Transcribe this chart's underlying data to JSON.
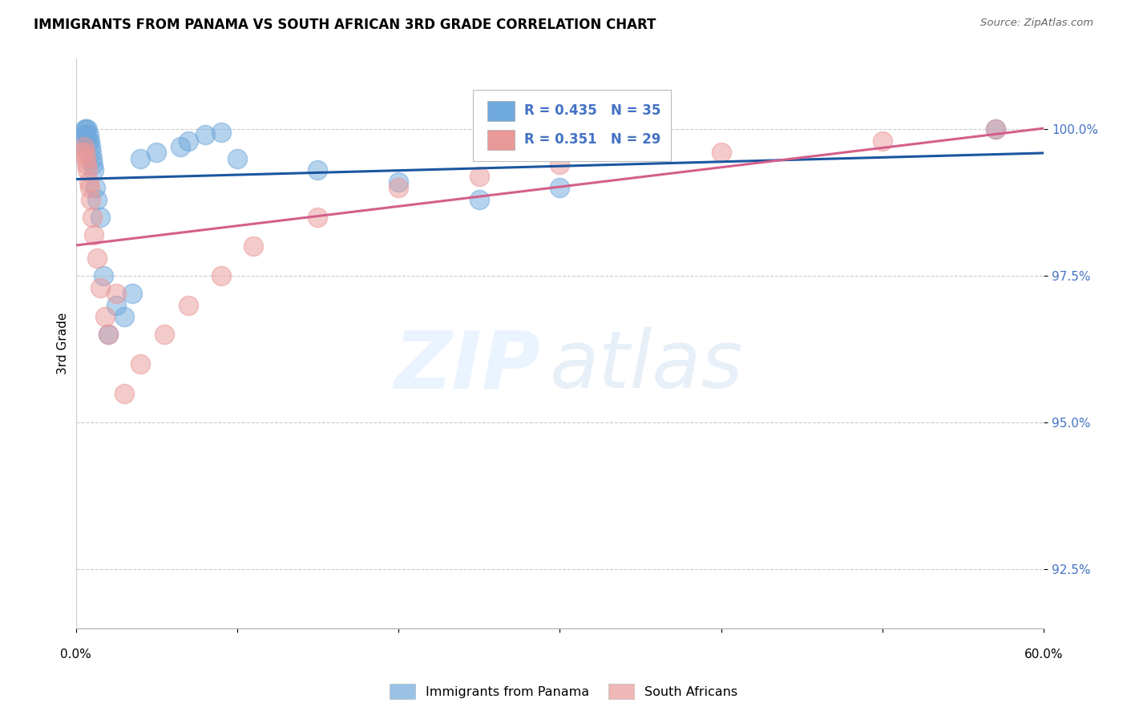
{
  "title": "IMMIGRANTS FROM PANAMA VS SOUTH AFRICAN 3RD GRADE CORRELATION CHART",
  "source": "Source: ZipAtlas.com",
  "ylabel": "3rd Grade",
  "yticks": [
    92.5,
    95.0,
    97.5,
    100.0
  ],
  "xlim": [
    0.0,
    60.0
  ],
  "ylim": [
    91.5,
    101.2
  ],
  "legend_label1": "Immigrants from Panama",
  "legend_label2": "South Africans",
  "blue_color": "#6fa8dc",
  "pink_color": "#ea9999",
  "blue_line_color": "#1a56a0",
  "pink_line_color": "#d45f8a",
  "panama_x": [
    0.3,
    0.4,
    0.5,
    0.55,
    0.6,
    0.65,
    0.7,
    0.75,
    0.8,
    0.85,
    0.9,
    0.95,
    1.0,
    1.05,
    1.1,
    1.2,
    1.3,
    1.5,
    1.7,
    2.0,
    2.5,
    3.0,
    3.5,
    4.0,
    5.0,
    6.5,
    7.0,
    8.0,
    9.0,
    10.0,
    15.0,
    20.0,
    25.0,
    30.0,
    57.0
  ],
  "panama_y": [
    99.7,
    99.8,
    99.9,
    100.0,
    100.0,
    99.9,
    100.0,
    99.8,
    99.9,
    99.8,
    99.7,
    99.6,
    99.5,
    99.4,
    99.3,
    99.0,
    98.8,
    98.5,
    97.5,
    96.5,
    97.0,
    96.8,
    97.2,
    99.5,
    99.6,
    99.7,
    99.8,
    99.9,
    99.95,
    99.5,
    99.3,
    99.1,
    98.8,
    99.0,
    100.0
  ],
  "sa_x": [
    0.35,
    0.5,
    0.6,
    0.7,
    0.8,
    0.9,
    1.0,
    1.1,
    1.3,
    1.5,
    1.8,
    2.0,
    2.5,
    3.0,
    4.0,
    5.5,
    7.0,
    9.0,
    11.0,
    15.0,
    20.0,
    25.0,
    30.0,
    40.0,
    50.0,
    57.0,
    0.55,
    0.65,
    0.85
  ],
  "sa_y": [
    99.6,
    99.7,
    99.5,
    99.3,
    99.1,
    98.8,
    98.5,
    98.2,
    97.8,
    97.3,
    96.8,
    96.5,
    97.2,
    95.5,
    96.0,
    96.5,
    97.0,
    97.5,
    98.0,
    98.5,
    99.0,
    99.2,
    99.4,
    99.6,
    99.8,
    100.0,
    99.6,
    99.4,
    99.0
  ],
  "line_xlim": [
    0.0,
    60.0
  ]
}
